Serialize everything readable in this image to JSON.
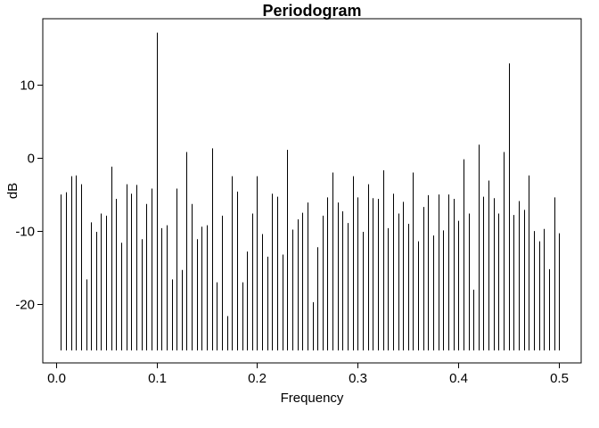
{
  "chart_data": {
    "type": "bar",
    "subtype": "periodogram-spikes",
    "title": "Periodogram",
    "xlabel": "Frequency",
    "ylabel": "dB",
    "xlim": [
      -0.013,
      0.522
    ],
    "ylim": [
      -28,
      19
    ],
    "baseline": -26.3,
    "xticks": [
      0.0,
      0.1,
      0.2,
      0.3,
      0.4,
      0.5
    ],
    "xtick_labels": [
      "0.0",
      "0.1",
      "0.2",
      "0.3",
      "0.4",
      "0.5"
    ],
    "yticks": [
      -20,
      -10,
      0,
      10
    ],
    "ytick_labels": [
      "-20",
      "-10",
      "0",
      "10"
    ],
    "grid": false,
    "legend": "none",
    "line_color": "#000000",
    "x": [
      0.005,
      0.01,
      0.015,
      0.02,
      0.025,
      0.03,
      0.035,
      0.04,
      0.045,
      0.05,
      0.055,
      0.06,
      0.065,
      0.07,
      0.075,
      0.08,
      0.085,
      0.09,
      0.095,
      0.1,
      0.105,
      0.11,
      0.115,
      0.12,
      0.125,
      0.13,
      0.135,
      0.14,
      0.145,
      0.15,
      0.155,
      0.16,
      0.165,
      0.17,
      0.175,
      0.18,
      0.185,
      0.19,
      0.195,
      0.2,
      0.205,
      0.21,
      0.215,
      0.22,
      0.225,
      0.23,
      0.235,
      0.24,
      0.245,
      0.25,
      0.255,
      0.26,
      0.265,
      0.27,
      0.275,
      0.28,
      0.285,
      0.29,
      0.295,
      0.3,
      0.305,
      0.31,
      0.315,
      0.32,
      0.325,
      0.33,
      0.335,
      0.34,
      0.345,
      0.35,
      0.355,
      0.36,
      0.365,
      0.37,
      0.375,
      0.38,
      0.385,
      0.39,
      0.395,
      0.4,
      0.405,
      0.41,
      0.415,
      0.42,
      0.425,
      0.43,
      0.435,
      0.44,
      0.445,
      0.45,
      0.455,
      0.46,
      0.465,
      0.47,
      0.475,
      0.48,
      0.485,
      0.49,
      0.495,
      0.5
    ],
    "values": [
      -5.0,
      -4.7,
      -2.5,
      -2.4,
      -3.6,
      -16.6,
      -8.8,
      -10.1,
      -7.6,
      -7.9,
      -1.2,
      -5.6,
      -11.6,
      -3.6,
      -4.9,
      -3.7,
      -11.1,
      -6.3,
      -4.2,
      17.1,
      -9.6,
      -9.2,
      -16.6,
      -4.2,
      -15.3,
      0.8,
      -6.3,
      -11.1,
      -9.4,
      -9.2,
      1.3,
      -17.0,
      -7.9,
      -21.6,
      -2.5,
      -4.6,
      -17.0,
      -12.8,
      -7.6,
      -2.5,
      -10.4,
      -13.5,
      -4.9,
      -5.3,
      -13.2,
      1.1,
      -9.8,
      -8.4,
      -7.5,
      -6.1,
      -19.7,
      -12.2,
      -7.9,
      -5.4,
      -2.0,
      -6.1,
      -7.3,
      -8.9,
      -2.5,
      -5.4,
      -10.1,
      -3.6,
      -5.5,
      -5.6,
      -1.7,
      -9.6,
      -4.9,
      -7.6,
      -6.0,
      -9.0,
      -2.0,
      -11.4,
      -6.7,
      -5.1,
      -10.6,
      -5.0,
      -9.9,
      -5.0,
      -5.6,
      -8.6,
      -0.2,
      -7.6,
      -18.0,
      1.8,
      -5.3,
      -3.1,
      -5.5,
      -7.6,
      0.8,
      12.9,
      -7.8,
      -5.9,
      -7.1,
      -2.4,
      -10.0,
      -11.4,
      -9.7,
      -15.2,
      -5.4,
      -10.3
    ]
  }
}
